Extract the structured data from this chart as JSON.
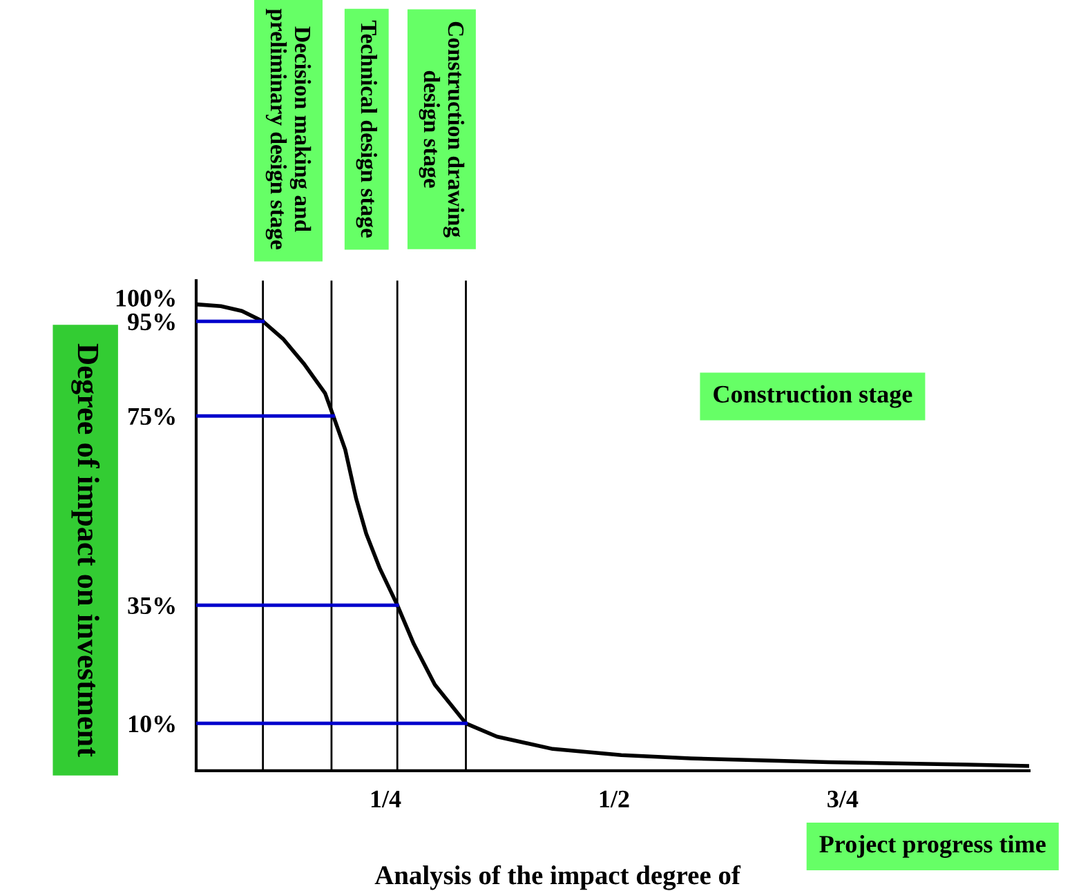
{
  "chart_data": {
    "type": "line",
    "ylabel": "Degree of impact on investment",
    "xlabel": "Project progress time",
    "xlim": [
      0.043,
      0.954
    ],
    "xticks": [
      {
        "value": 0.25,
        "label": "1/4"
      },
      {
        "value": 0.5,
        "label": "1/2"
      },
      {
        "value": 0.75,
        "label": "3/4"
      }
    ],
    "ylim": [
      0,
      103.6
    ],
    "yticks": [
      {
        "value": 10,
        "label": "10%"
      },
      {
        "value": 35,
        "label": "35%"
      },
      {
        "value": 75,
        "label": "75%"
      },
      {
        "value": 95,
        "label": "95%"
      },
      {
        "value": 100,
        "label": "100%"
      }
    ],
    "series": [
      {
        "color": "#000000",
        "x": [
          0.043,
          0.07,
          0.093,
          0.116,
          0.138,
          0.161,
          0.184,
          0.193,
          0.206,
          0.218,
          0.229,
          0.244,
          0.263,
          0.281,
          0.304,
          0.338,
          0.372,
          0.433,
          0.508,
          0.584,
          0.735,
          0.886,
          0.954
        ],
        "values": [
          98.6,
          98.2,
          97.2,
          95,
          91.3,
          86.0,
          79.8,
          75,
          67.9,
          57.5,
          50.1,
          42.7,
          35,
          26.8,
          18.2,
          10,
          7.2,
          4.6,
          3.3,
          2.6,
          1.8,
          1.3,
          1.0
        ]
      },
      {
        "color": "#0000cc",
        "x": [
          0.043,
          0.116
        ],
        "values": [
          95,
          95
        ]
      },
      {
        "color": "#0000cc",
        "x": [
          0.043,
          0.193
        ],
        "values": [
          75,
          75
        ]
      },
      {
        "color": "#0000cc",
        "x": [
          0.043,
          0.263
        ],
        "values": [
          35,
          35
        ]
      },
      {
        "color": "#0000cc",
        "x": [
          0.043,
          0.338
        ],
        "values": [
          10,
          10
        ]
      }
    ],
    "ref_lines": [
      {
        "axis": "x",
        "value": 0.116,
        "color": "#000000"
      },
      {
        "axis": "x",
        "value": 0.191,
        "color": "#000000"
      },
      {
        "axis": "x",
        "value": 0.263,
        "color": "#000000"
      },
      {
        "axis": "x",
        "value": 0.338,
        "color": "#000000"
      }
    ],
    "annotations": [
      "Decision making and\npreliminary design stage",
      "Technical design stage",
      "Construction drawing\ndesign stage",
      "Construction stage",
      "Analysis of the impact degree of"
    ]
  }
}
